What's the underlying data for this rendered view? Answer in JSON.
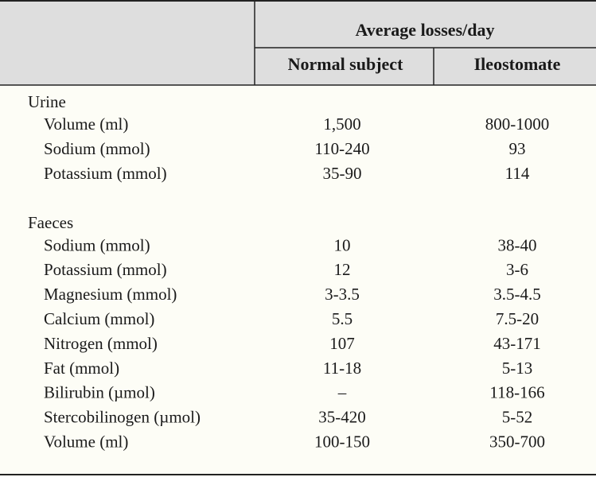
{
  "header": {
    "title": "Average losses/day",
    "columns": [
      "Normal subject",
      "Ileostomate"
    ]
  },
  "sections": [
    {
      "label": "Urine",
      "rows": [
        [
          "Volume (ml)",
          "1,500",
          "800-1000"
        ],
        [
          "Sodium (mmol)",
          "110-240",
          "93"
        ],
        [
          "Potassium (mmol)",
          "35-90",
          "114"
        ]
      ]
    },
    {
      "label": "Faeces",
      "rows": [
        [
          "Sodium (mmol)",
          "10",
          "38-40"
        ],
        [
          "Potassium (mmol)",
          "12",
          "3-6"
        ],
        [
          "Magnesium (mmol)",
          "3-3.5",
          "3.5-4.5"
        ],
        [
          "Calcium (mmol)",
          "5.5",
          "7.5-20"
        ],
        [
          "Nitrogen (mmol)",
          "107",
          "43-171"
        ],
        [
          "Fat (mmol)",
          "11-18",
          "5-13"
        ],
        [
          "Bilirubin (µmol)",
          "–",
          "118-166"
        ],
        [
          "Stercobilinogen (µmol)",
          "35-420",
          "5-52"
        ],
        [
          "Volume (ml)",
          "100-150",
          "350-700"
        ]
      ]
    }
  ]
}
